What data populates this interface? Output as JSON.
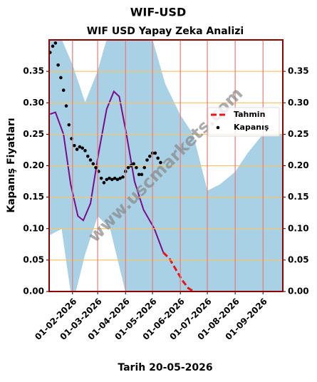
{
  "chart_data": {
    "type": "line",
    "title": "WIF-USD",
    "subtitle": "WIF USD Yapay Zeka Analizi",
    "xlabel": "Tarih 20-05-2026",
    "ylabel": "Kapanış Fiyatları",
    "watermark": "www.uscmarkets.com",
    "xlim": [
      "06-01-2026",
      "23-09-2026"
    ],
    "xticks": [
      "01-02-2026",
      "01-03-2026",
      "01-04-2026",
      "01-05-2026",
      "01-06-2026",
      "01-07-2026",
      "01-08-2026",
      "01-09-2026"
    ],
    "ylim": [
      0,
      0.4
    ],
    "yticks": [
      {
        "value": 0,
        "label": "0.00"
      },
      {
        "value": 0.05,
        "label": "0.05"
      },
      {
        "value": 0.1,
        "label": "0.10"
      },
      {
        "value": 0.15,
        "label": "0.15"
      },
      {
        "value": 0.2,
        "label": "0.20"
      },
      {
        "value": 0.25,
        "label": "0.25"
      },
      {
        "value": 0.3,
        "label": "0.30"
      },
      {
        "value": 0.35,
        "label": "0.35"
      }
    ],
    "grid": true,
    "legend": "upper right",
    "series": [
      {
        "type": "band",
        "color": "#a9d1e6",
        "x": [
          "07-01-2026",
          "20-01-2026",
          "01-02-2026",
          "15-02-2026",
          "01-03-2026",
          "15-03-2026",
          "01-04-2026",
          "15-04-2026",
          "01-05-2026",
          "15-05-2026",
          "01-06-2026",
          "15-06-2026",
          "01-07-2026",
          "15-07-2026",
          "01-08-2026",
          "15-08-2026",
          "01-09-2026",
          "22-09-2026"
        ],
        "lower": [
          0.09,
          0.1,
          -0.02,
          0.06,
          0.12,
          0.1,
          0.0,
          -0.05,
          -0.05,
          -0.05,
          -0.05,
          -0.05,
          -0.05,
          -0.05,
          -0.05,
          -0.05,
          -0.05,
          -0.05
        ],
        "upper": [
          0.42,
          0.4,
          0.36,
          0.3,
          0.35,
          0.42,
          0.42,
          0.42,
          0.4,
          0.33,
          0.28,
          0.25,
          0.16,
          0.17,
          0.19,
          0.22,
          0.25,
          0.25
        ]
      },
      {
        "type": "line",
        "color": "#7b0a8c",
        "x": [
          "07-01-2026",
          "13-01-2026",
          "22-01-2026",
          "30-01-2026",
          "07-02-2026",
          "13-02-2026",
          "21-02-2026",
          "02-03-2026",
          "11-03-2026",
          "19-03-2026",
          "25-03-2026",
          "02-04-2026",
          "11-04-2026",
          "21-04-2026",
          "03-05-2026",
          "13-05-2026"
        ],
        "values": [
          0.282,
          0.285,
          0.25,
          0.17,
          0.12,
          0.113,
          0.14,
          0.22,
          0.29,
          0.318,
          0.31,
          0.25,
          0.175,
          0.13,
          0.1,
          0.062
        ]
      },
      {
        "name": "Tahmin",
        "type": "line",
        "dashed": true,
        "color": "#e8161b",
        "x": [
          "13-05-2026",
          "20-05-2026",
          "27-05-2026",
          "03-06-2026",
          "10-06-2026",
          "16-06-2026"
        ],
        "values": [
          0.062,
          0.052,
          0.035,
          0.018,
          0.005,
          0.0
        ]
      },
      {
        "name": "Kapanış",
        "type": "scatter",
        "color": "#000000",
        "x": [
          "07-01-2026",
          "10-01-2026",
          "13-01-2026",
          "16-01-2026",
          "19-01-2026",
          "22-01-2026",
          "25-01-2026",
          "28-01-2026",
          "31-01-2026",
          "03-02-2026",
          "06-02-2026",
          "09-02-2026",
          "12-02-2026",
          "15-02-2026",
          "18-02-2026",
          "21-02-2026",
          "24-02-2026",
          "27-02-2026",
          "02-03-2026",
          "05-03-2026",
          "08-03-2026",
          "11-03-2026",
          "14-03-2026",
          "17-03-2026",
          "20-03-2026",
          "23-03-2026",
          "26-03-2026",
          "29-03-2026",
          "01-04-2026",
          "04-04-2026",
          "07-04-2026",
          "10-04-2026",
          "13-04-2026",
          "16-04-2026",
          "19-04-2026",
          "22-04-2026",
          "25-04-2026",
          "28-04-2026",
          "01-05-2026",
          "04-05-2026",
          "07-05-2026",
          "10-05-2026"
        ],
        "values": [
          0.38,
          0.39,
          0.395,
          0.36,
          0.34,
          0.32,
          0.295,
          0.265,
          0.243,
          0.232,
          0.226,
          0.23,
          0.228,
          0.224,
          0.215,
          0.209,
          0.203,
          0.197,
          0.191,
          0.18,
          0.173,
          0.178,
          0.18,
          0.178,
          0.18,
          0.178,
          0.18,
          0.182,
          0.191,
          0.197,
          0.2,
          0.203,
          0.197,
          0.186,
          0.186,
          0.197,
          0.209,
          0.215,
          0.22,
          0.22,
          0.212,
          0.205
        ]
      }
    ]
  }
}
